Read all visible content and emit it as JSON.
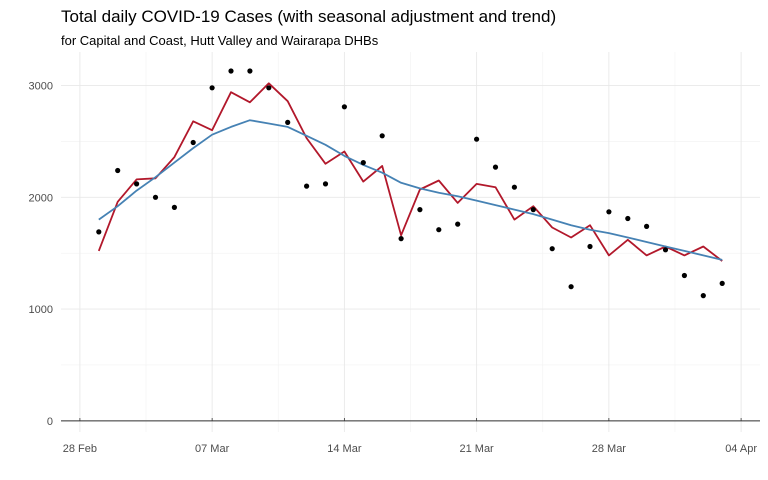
{
  "chart_data": {
    "type": "line",
    "title": "Total daily COVID-19 Cases (with seasonal adjustment and trend)",
    "subtitle": "for Capital and Coast, Hutt Valley and Wairarapa DHBs",
    "xlabel": "",
    "ylabel": "",
    "x_ticks": [
      {
        "date": "2022-02-28",
        "label": "28 Feb"
      },
      {
        "date": "2022-03-07",
        "label": "07 Mar"
      },
      {
        "date": "2022-03-14",
        "label": "14 Mar"
      },
      {
        "date": "2022-03-21",
        "label": "21 Mar"
      },
      {
        "date": "2022-03-28",
        "label": "28 Mar"
      },
      {
        "date": "2022-04-04",
        "label": "04 Apr"
      }
    ],
    "y_ticks": [
      0,
      1000,
      2000,
      3000
    ],
    "xlim": [
      "2022-02-27",
      "2022-04-05"
    ],
    "ylim": [
      -100,
      3300
    ],
    "grid": true,
    "legend": "none",
    "x": [
      "2022-03-01",
      "2022-03-02",
      "2022-03-03",
      "2022-03-04",
      "2022-03-05",
      "2022-03-06",
      "2022-03-07",
      "2022-03-08",
      "2022-03-09",
      "2022-03-10",
      "2022-03-11",
      "2022-03-12",
      "2022-03-13",
      "2022-03-14",
      "2022-03-15",
      "2022-03-16",
      "2022-03-17",
      "2022-03-18",
      "2022-03-19",
      "2022-03-20",
      "2022-03-21",
      "2022-03-22",
      "2022-03-23",
      "2022-03-24",
      "2022-03-25",
      "2022-03-26",
      "2022-03-27",
      "2022-03-28",
      "2022-03-29",
      "2022-03-30",
      "2022-03-31",
      "2022-04-01",
      "2022-04-02",
      "2022-04-03"
    ],
    "series": [
      {
        "kind": "points",
        "color": "#000000",
        "values": [
          1690,
          2240,
          2120,
          2000,
          1910,
          2490,
          2980,
          3130,
          3130,
          2980,
          2670,
          2100,
          2120,
          2810,
          2310,
          2550,
          1630,
          1890,
          1710,
          1760,
          2520,
          2270,
          2090,
          1890,
          1540,
          1200,
          1560,
          1870,
          1810,
          1740,
          1530,
          1300,
          1120,
          1230
        ]
      },
      {
        "kind": "line",
        "color": "#b2182b",
        "values": [
          1520,
          1960,
          2160,
          2170,
          2360,
          2680,
          2600,
          2940,
          2850,
          3020,
          2860,
          2530,
          2300,
          2410,
          2140,
          2280,
          1660,
          2070,
          2150,
          1950,
          2120,
          2090,
          1800,
          1920,
          1730,
          1640,
          1750,
          1480,
          1620,
          1480,
          1560,
          1480,
          1560,
          1430
        ]
      },
      {
        "kind": "line",
        "color": "#4682b4",
        "values": [
          1800,
          1920,
          2060,
          2180,
          2310,
          2440,
          2560,
          2630,
          2690,
          2660,
          2630,
          2550,
          2470,
          2370,
          2290,
          2220,
          2130,
          2080,
          2040,
          2010,
          1970,
          1930,
          1890,
          1850,
          1800,
          1750,
          1710,
          1680,
          1640,
          1600,
          1560,
          1520,
          1480,
          1440
        ]
      }
    ]
  }
}
